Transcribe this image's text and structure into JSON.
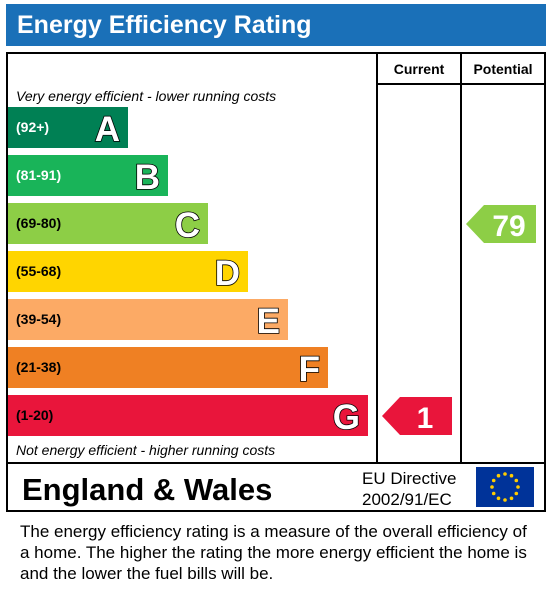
{
  "title": "Energy Efficiency Rating",
  "columns": {
    "current": "Current",
    "potential": "Potential"
  },
  "top_note": "Very energy efficient - lower running costs",
  "bottom_note": "Not energy efficient - higher running costs",
  "chart_data": {
    "type": "bar",
    "categories": [
      "A",
      "B",
      "C",
      "D",
      "E",
      "F",
      "G"
    ],
    "bands": [
      {
        "letter": "A",
        "range": "(92+)",
        "color": "#008054",
        "range_color": "#ffffff"
      },
      {
        "letter": "B",
        "range": "(81-91)",
        "color": "#19b459",
        "range_color": "#ffffff"
      },
      {
        "letter": "C",
        "range": "(69-80)",
        "color": "#8dce46",
        "range_color": "#000000"
      },
      {
        "letter": "D",
        "range": "(55-68)",
        "color": "#ffd500",
        "range_color": "#000000"
      },
      {
        "letter": "E",
        "range": "(39-54)",
        "color": "#fcaa65",
        "range_color": "#000000"
      },
      {
        "letter": "F",
        "range": "(21-38)",
        "color": "#ef8023",
        "range_color": "#000000"
      },
      {
        "letter": "G",
        "range": "(1-20)",
        "color": "#e9153b",
        "range_color": "#000000"
      }
    ],
    "current": {
      "value": 1,
      "band": "G",
      "color": "#e9153b"
    },
    "potential": {
      "value": 79,
      "band": "C",
      "color": "#8dce46"
    }
  },
  "footer": {
    "region": "England & Wales",
    "directive_line1": "EU Directive",
    "directive_line2": "2002/91/EC"
  },
  "description": "The energy efficiency rating is a measure of the overall efficiency of a home.  The higher the rating the more energy efficient the home is and the lower the fuel bills will be.",
  "colors": {
    "title_bg": "#1a70b8",
    "eu_blue": "#003399",
    "eu_star": "#ffcc00"
  }
}
